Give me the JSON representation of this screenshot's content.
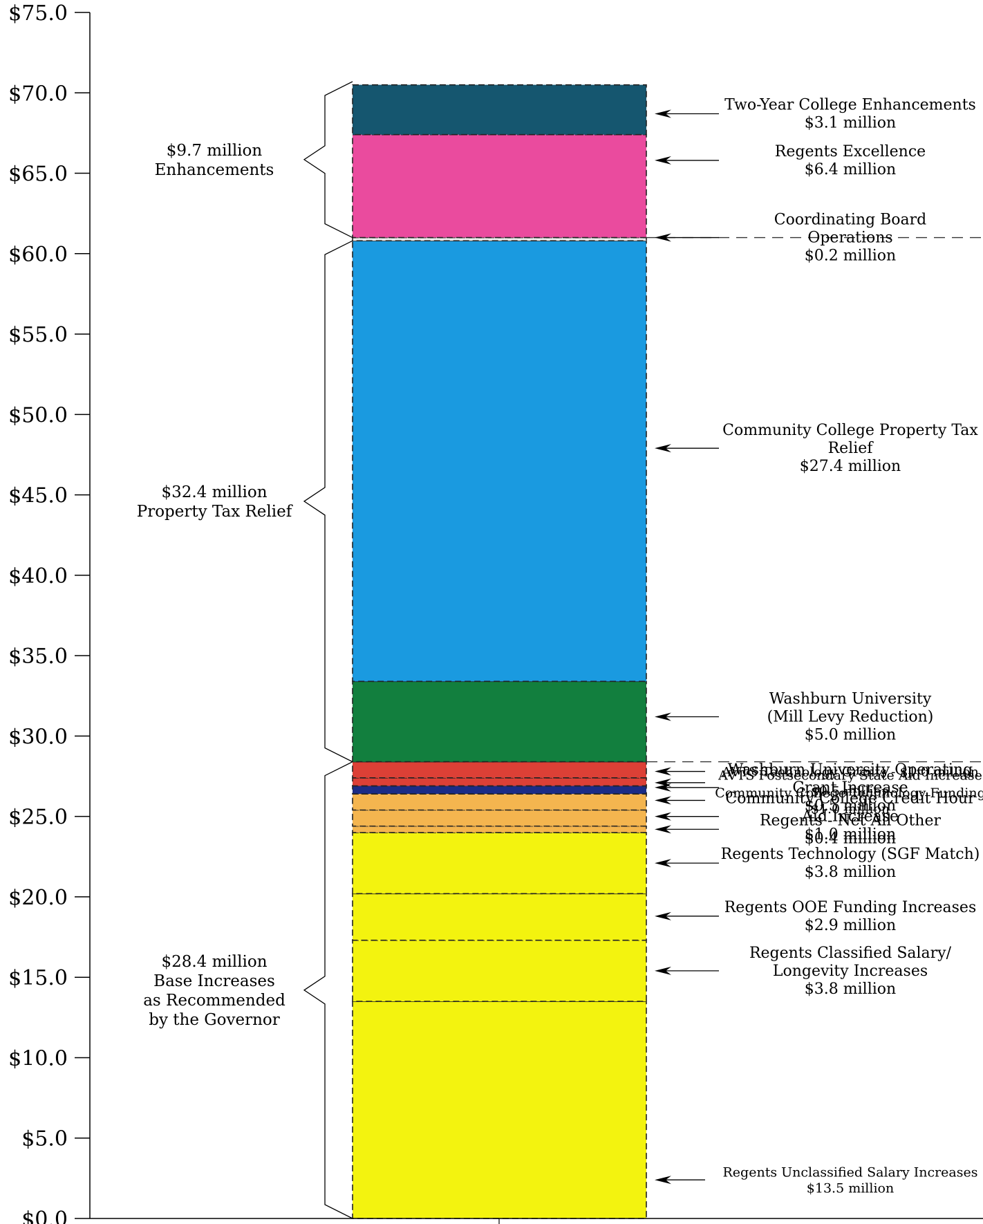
{
  "chart_data": {
    "type": "bar",
    "subtype": "stacked",
    "ylim": [
      0,
      75
    ],
    "yticks": [
      "$0.0",
      "$5.0",
      "$10.0",
      "$15.0",
      "$20.0",
      "$25.0",
      "$30.0",
      "$35.0",
      "$40.0",
      "$45.0",
      "$50.0",
      "$55.0",
      "$60.0",
      "$65.0",
      "$70.0",
      "$75.0"
    ],
    "segments": [
      {
        "value": 13.5,
        "color": "#f3f30f"
      },
      {
        "value": 3.8,
        "color": "#f3f30f"
      },
      {
        "value": 2.9,
        "color": "#f3f30f"
      },
      {
        "value": 3.8,
        "color": "#f3f30f"
      },
      {
        "value": 0.4,
        "color": "#f4b54f"
      },
      {
        "value": 1.0,
        "color": "#f4b54f"
      },
      {
        "value": 1.0,
        "color": "#f4b54f"
      },
      {
        "value": 0.5,
        "color": "#1b2c86"
      },
      {
        "value": 0.5,
        "color": "#dc4036"
      },
      {
        "value": 1.0,
        "color": "#dc4036"
      },
      {
        "value": 5.0,
        "color": "#127f3e"
      },
      {
        "value": 27.4,
        "color": "#1a9ae0"
      },
      {
        "value": 0.2,
        "color": "#eeeeee"
      },
      {
        "value": 6.4,
        "color": "#ea4b9e"
      },
      {
        "value": 3.1,
        "color": "#15566f"
      }
    ],
    "annotations": [
      {
        "lines": [
          "Two-Year College Enhancements",
          "$3.1 million"
        ],
        "y": 68.7
      },
      {
        "lines": [
          "Regents Excellence",
          "$6.4 million"
        ],
        "y": 65.8
      },
      {
        "lines": [
          "Coordinating Board",
          "Operations",
          "$0.2 million"
        ],
        "y": 61.0
      },
      {
        "lines": [
          "Community College Property Tax",
          "Relief",
          "$27.4 million"
        ],
        "y": 47.9
      },
      {
        "lines": [
          "Washburn University",
          "(Mill Levy Reduction)",
          "$5.0 million"
        ],
        "y": 31.2
      },
      {
        "lines": [
          "AVTS Technology Grants - $1.0 million"
        ],
        "y": 27.8
      },
      {
        "lines": [
          "AVTS Postsecondary State Aid Increase",
          "$0.5 million"
        ],
        "y": 27.1
      },
      {
        "lines": [
          "Washburn University Operating",
          "Grant Increase",
          "$0.5 million"
        ],
        "y": 26.8
      },
      {
        "lines": [
          "Community College Technology Funding",
          "$1.0 million"
        ],
        "y": 26.0
      },
      {
        "lines": [
          "Community College Credit Hour",
          "Aid Increase",
          "$1.0 million"
        ],
        "y": 25.0
      },
      {
        "lines": [
          "Regents - Net All Other",
          "$0.4 million"
        ],
        "y": 24.2
      },
      {
        "lines": [
          "Regents Technology (SGF Match)",
          "$3.8 million"
        ],
        "y": 22.1
      },
      {
        "lines": [
          "Regents OOE Funding Increases",
          "$2.9 million"
        ],
        "y": 18.8
      },
      {
        "lines": [
          "Regents Classified Salary/",
          "Longevity Increases",
          "$3.8 million"
        ],
        "y": 15.4
      },
      {
        "lines": [
          "Regents Unclassified Salary Increases",
          "$13.5 million"
        ],
        "y": 2.4
      }
    ],
    "groups": [
      {
        "lines": [
          "$9.7 million",
          "Enhancements"
        ],
        "from": 61.0,
        "to": 70.7
      },
      {
        "lines": [
          "$32.4 million",
          "Property Tax Relief"
        ],
        "from": 28.4,
        "to": 60.8
      },
      {
        "lines": [
          "$28.4 million",
          "Base Increases",
          "as Recommended",
          "by the Governor"
        ],
        "from": 0.0,
        "to": 28.4
      }
    ]
  }
}
